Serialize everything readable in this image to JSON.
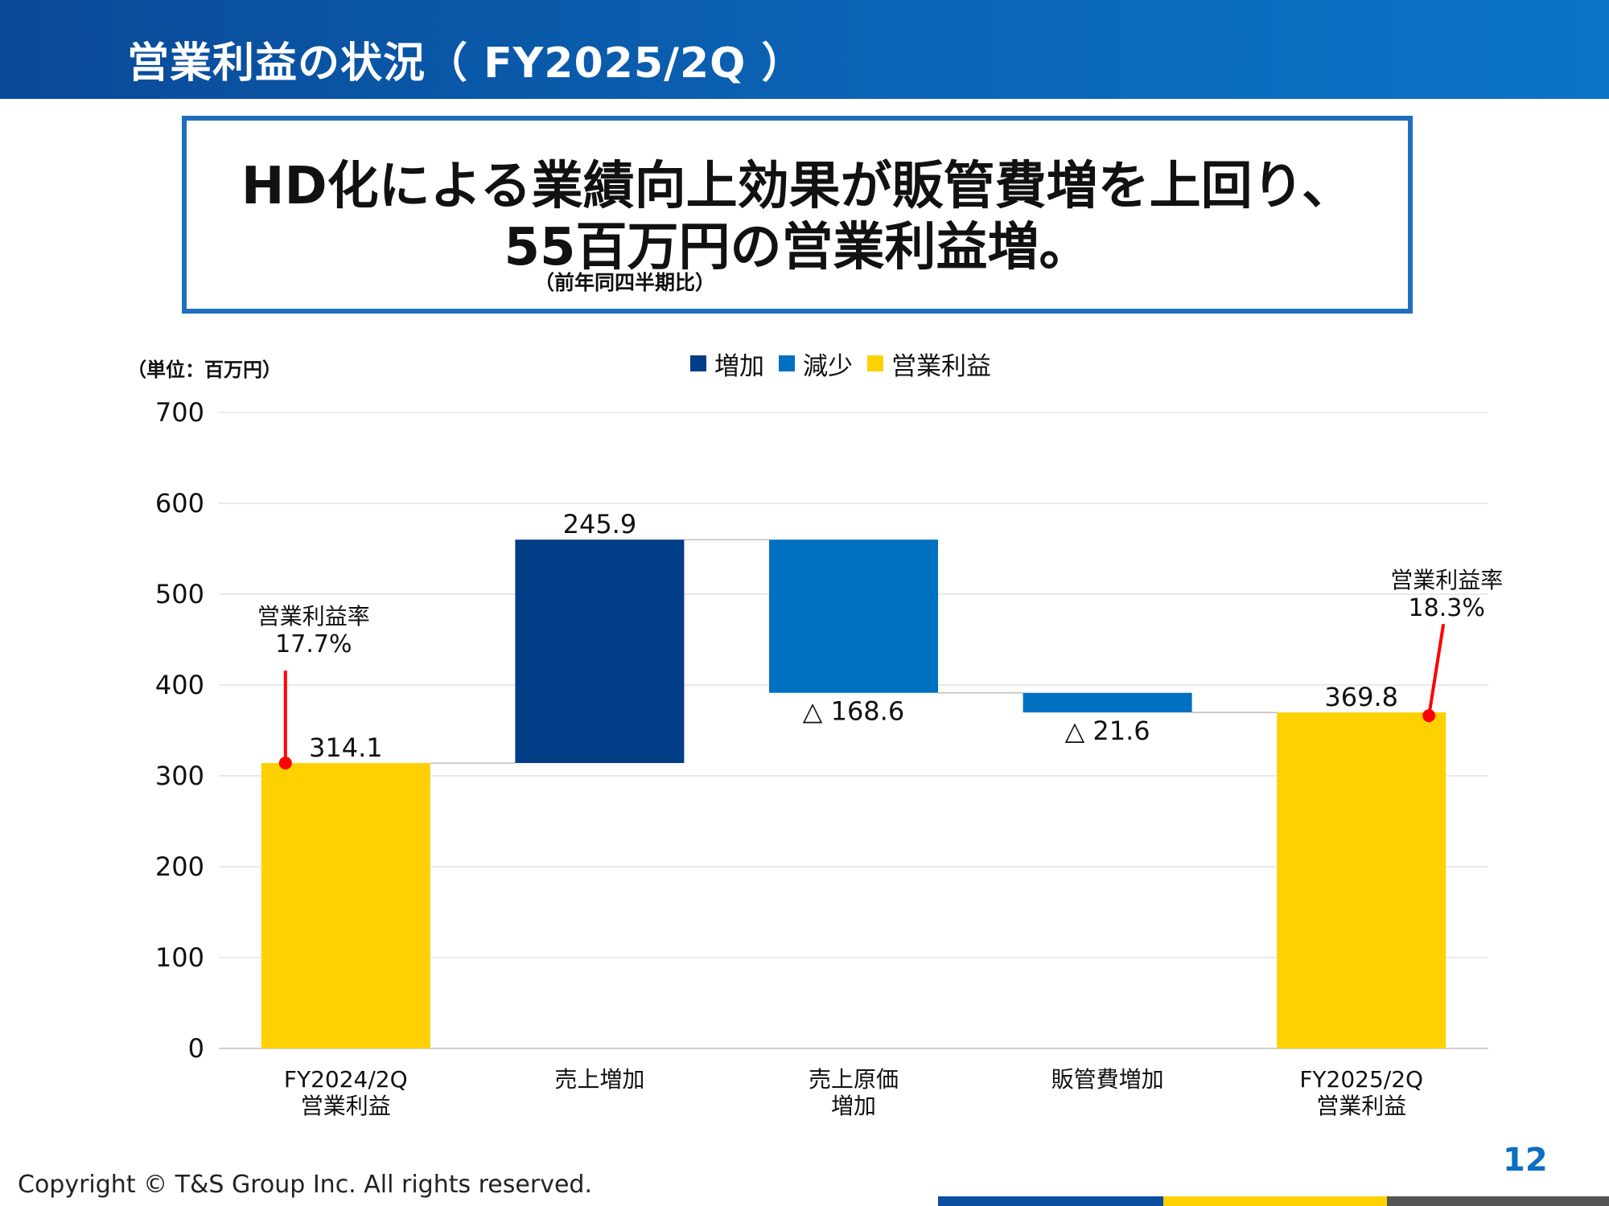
{
  "header": {
    "title": "営業利益の状況（ FY2025/2Q ）"
  },
  "headline": {
    "line1": "HD化による業績向上効果が販管費増を上回り、",
    "line2": "55百万円の営業利益増。",
    "note": "（前年同四半期比）"
  },
  "unit_label": "（単位：百万円）",
  "legend": [
    {
      "label": "増加",
      "color": "#003d87"
    },
    {
      "label": "減少",
      "color": "#0070c0"
    },
    {
      "label": "営業利益",
      "color": "#ffd100"
    }
  ],
  "chart_data": {
    "type": "bar",
    "subtype": "waterfall",
    "categories": [
      [
        "FY2024/2Q",
        "営業利益"
      ],
      [
        "売上増加"
      ],
      [
        "売上原価",
        "増加"
      ],
      [
        "販管費増加"
      ],
      [
        "FY2025/2Q",
        "営業利益"
      ]
    ],
    "bars": [
      {
        "kind": "total",
        "start": 0,
        "end": 314.1,
        "label": "314.1",
        "color": "#ffd100"
      },
      {
        "kind": "increase",
        "start": 314.1,
        "end": 560.0,
        "label": "245.9",
        "color": "#003d87"
      },
      {
        "kind": "decrease",
        "start": 560.0,
        "end": 391.4,
        "label": "△ 168.6",
        "color": "#0070c0"
      },
      {
        "kind": "decrease",
        "start": 391.4,
        "end": 369.8,
        "label": "△ 21.6",
        "color": "#0070c0"
      },
      {
        "kind": "total",
        "start": 0,
        "end": 369.8,
        "label": "369.8",
        "color": "#ffd100"
      }
    ],
    "ylim": [
      0,
      700
    ],
    "yticks": [
      0,
      100,
      200,
      300,
      400,
      500,
      600,
      700
    ],
    "grid": true,
    "legend_position": "top-center",
    "annotations": [
      {
        "bar_index": 0,
        "title": "営業利益率",
        "value": "17.7%",
        "color": "#ff0000"
      },
      {
        "bar_index": 4,
        "title": "営業利益率",
        "value": "18.3%",
        "color": "#ff0000"
      }
    ]
  },
  "footer": {
    "copyright": "Copyright © T&S Group Inc. All rights reserved.",
    "page_number": "12",
    "bar_colors": [
      "#0b4ea2",
      "#ffd100",
      "#555555"
    ]
  }
}
